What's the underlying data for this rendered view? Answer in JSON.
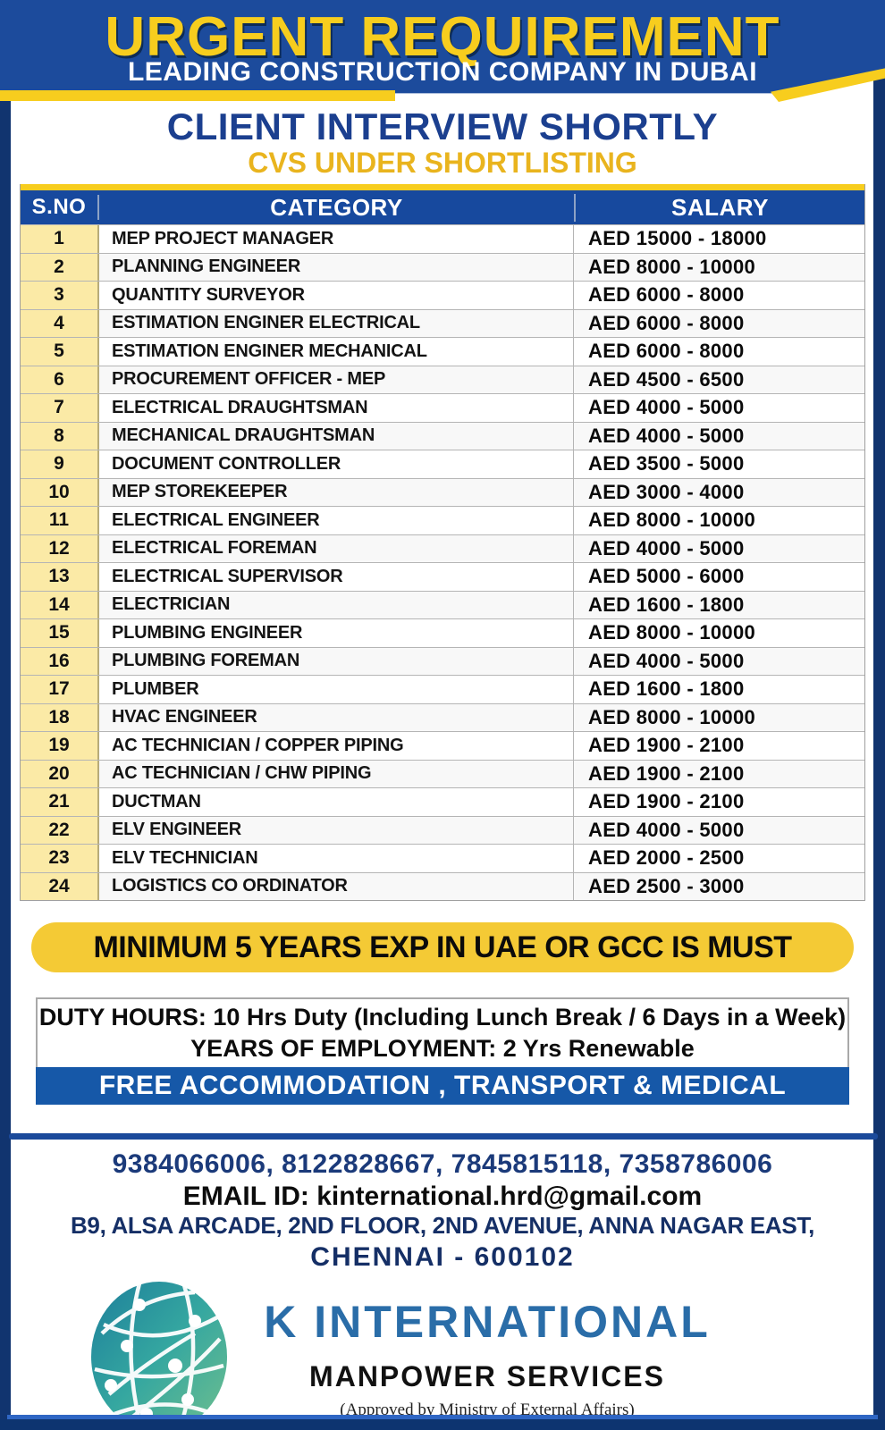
{
  "header": {
    "title": "URGENT REQUIREMENT",
    "subtitle": "LEADING CONSTRUCTION COMPANY IN DUBAI",
    "interview_line": "CLIENT INTERVIEW SHORTLY",
    "cvs_line": "CVS UNDER SHORTLISTING"
  },
  "table": {
    "columns": [
      "S.NO",
      "CATEGORY",
      "SALARY"
    ],
    "rows": [
      {
        "sno": "1",
        "category": "MEP PROJECT MANAGER",
        "salary": "AED 15000 - 18000"
      },
      {
        "sno": "2",
        "category": "PLANNING ENGINEER",
        "salary": "AED 8000 - 10000"
      },
      {
        "sno": "3",
        "category": "QUANTITY SURVEYOR",
        "salary": "AED 6000 - 8000"
      },
      {
        "sno": "4",
        "category": "ESTIMATION ENGINER ELECTRICAL",
        "salary": "AED 6000 - 8000"
      },
      {
        "sno": "5",
        "category": "ESTIMATION ENGINER MECHANICAL",
        "salary": "AED 6000 - 8000"
      },
      {
        "sno": "6",
        "category": "PROCUREMENT OFFICER  - MEP",
        "salary": "AED 4500 - 6500"
      },
      {
        "sno": "7",
        "category": "ELECTRICAL DRAUGHTSMAN",
        "salary": "AED 4000 - 5000"
      },
      {
        "sno": "8",
        "category": "MECHANICAL DRAUGHTSMAN",
        "salary": "AED 4000 - 5000"
      },
      {
        "sno": "9",
        "category": "DOCUMENT CONTROLLER",
        "salary": "AED 3500 - 5000"
      },
      {
        "sno": "10",
        "category": "MEP STOREKEEPER",
        "salary": "AED 3000 - 4000"
      },
      {
        "sno": "11",
        "category": "ELECTRICAL ENGINEER",
        "salary": "AED 8000 - 10000"
      },
      {
        "sno": "12",
        "category": "ELECTRICAL FOREMAN",
        "salary": "AED 4000 - 5000"
      },
      {
        "sno": "13",
        "category": "ELECTRICAL SUPERVISOR",
        "salary": "AED 5000 - 6000"
      },
      {
        "sno": "14",
        "category": "ELECTRICIAN",
        "salary": "AED 1600 - 1800"
      },
      {
        "sno": "15",
        "category": "PLUMBING ENGINEER",
        "salary": "AED 8000 - 10000"
      },
      {
        "sno": "16",
        "category": "PLUMBING FOREMAN",
        "salary": "AED 4000 - 5000"
      },
      {
        "sno": "17",
        "category": "PLUMBER",
        "salary": "AED 1600 - 1800"
      },
      {
        "sno": "18",
        "category": "HVAC ENGINEER",
        "salary": "AED 8000 - 10000"
      },
      {
        "sno": "19",
        "category": "AC TECHNICIAN / COPPER PIPING",
        "salary": "AED 1900 - 2100"
      },
      {
        "sno": "20",
        "category": "AC TECHNICIAN / CHW PIPING",
        "salary": "AED 1900 - 2100"
      },
      {
        "sno": "21",
        "category": "DUCTMAN",
        "salary": "AED 1900 - 2100"
      },
      {
        "sno": "22",
        "category": "ELV ENGINEER",
        "salary": "AED 4000 - 5000"
      },
      {
        "sno": "23",
        "category": "ELV TECHNICIAN",
        "salary": "AED 2000 - 2500"
      },
      {
        "sno": "24",
        "category": "LOGISTICS CO ORDINATOR",
        "salary": "AED 2500 - 3000"
      }
    ]
  },
  "banners": {
    "experience": "MINIMUM 5 YEARS EXP IN UAE OR GCC IS MUST",
    "duty_label": "DUTY HOURS:",
    "duty_value": " 10 Hrs Duty (Including Lunch Break / 6 Days in a Week)",
    "employment_label": "YEARS OF EMPLOYMENT:",
    "employment_value": " 2 Yrs Renewable",
    "free_line": "FREE ACCOMMODATION , TRANSPORT & MEDICAL"
  },
  "contact": {
    "phones": "9384066006, 8122828667, 7845815118, 7358786006",
    "email_label": "EMAIL ID: ",
    "email": "kinternational.hrd@gmail.com",
    "address_line1": "B9, ALSA ARCADE, 2ND FLOOR, 2ND AVENUE, ANNA NAGAR EAST,",
    "address_line2": "CHENNAI - 600102"
  },
  "footer": {
    "company": "K INTERNATIONAL",
    "tagline": "MANPOWER SERVICES",
    "approval": "(Approved by Ministry of External Affairs)"
  },
  "colors": {
    "header_blue": "#1c4b9c",
    "accent_yellow": "#f7cd1e",
    "navy_border": "#11346f",
    "table_header_blue": "#17499e",
    "sno_column_bg": "#fbeaa6",
    "gold_text": "#e9b41e",
    "free_band_blue": "#1658a8",
    "contact_navy": "#152f66",
    "logo_blue": "#2a6da8",
    "globe_teal": "#35a7a0"
  }
}
